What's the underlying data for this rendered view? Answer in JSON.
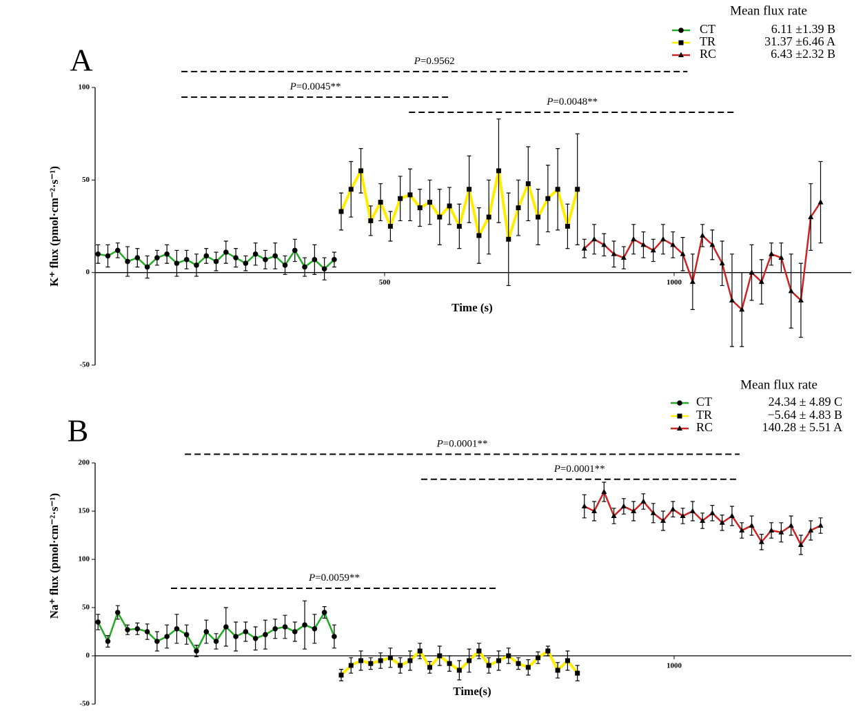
{
  "chart_data": [
    {
      "type": "line",
      "panel_label": "A",
      "legend_title": "Mean flux rate",
      "xlabel": "Time (s)",
      "ylabel": "K⁺ flux (pmol·cm⁻²·s⁻¹)",
      "xlim": [
        0,
        1306
      ],
      "ylim": [
        -50,
        100
      ],
      "xticks": [
        500,
        1000
      ],
      "yticks": [
        -50,
        0,
        50,
        100
      ],
      "series": [
        {
          "name": "CT",
          "color": "#22aa22",
          "marker": "circle",
          "mean_label": "6.11 ±1.39 B",
          "x": [
            5,
            22,
            39,
            56,
            73,
            90,
            107,
            124,
            141,
            158,
            175,
            192,
            209,
            226,
            243,
            260,
            277,
            294,
            311,
            328,
            345,
            362,
            379,
            396,
            413
          ],
          "values": [
            10,
            9,
            12,
            6,
            8,
            3,
            8,
            10,
            5,
            7,
            4,
            9,
            6,
            11,
            8,
            5,
            10,
            7,
            9,
            4,
            12,
            3,
            7,
            2,
            7
          ],
          "errors": [
            5,
            6,
            4,
            8,
            5,
            6,
            4,
            5,
            7,
            5,
            6,
            4,
            5,
            6,
            5,
            4,
            6,
            5,
            7,
            5,
            6,
            5,
            8,
            6,
            4
          ]
        },
        {
          "name": "TR",
          "color": "#ffee00",
          "marker": "square",
          "mean_label": "31.37 ±6.46 A",
          "x": [
            425,
            442,
            459,
            476,
            493,
            510,
            527,
            544,
            561,
            578,
            595,
            612,
            629,
            646,
            663,
            680,
            697,
            714,
            731,
            748,
            765,
            782,
            799,
            816,
            833
          ],
          "values": [
            33,
            45,
            55,
            28,
            38,
            25,
            40,
            42,
            35,
            38,
            30,
            36,
            25,
            45,
            20,
            30,
            55,
            18,
            35,
            48,
            30,
            40,
            45,
            25,
            45
          ],
          "errors": [
            10,
            15,
            12,
            8,
            10,
            8,
            12,
            14,
            10,
            12,
            15,
            10,
            12,
            18,
            15,
            20,
            28,
            25,
            15,
            20,
            15,
            18,
            22,
            12,
            30
          ]
        },
        {
          "name": "RC",
          "color": "#cc2222",
          "marker": "triangle",
          "mean_label": "6.43 ±2.32 B",
          "x": [
            845,
            862,
            879,
            896,
            913,
            930,
            947,
            964,
            981,
            998,
            1015,
            1032,
            1049,
            1066,
            1083,
            1100,
            1117,
            1134,
            1151,
            1168,
            1185,
            1202,
            1219,
            1236,
            1253
          ],
          "values": [
            13,
            18,
            15,
            10,
            8,
            18,
            15,
            12,
            18,
            15,
            10,
            -5,
            20,
            15,
            5,
            -15,
            -20,
            0,
            -5,
            10,
            8,
            -10,
            -15,
            30,
            38
          ],
          "errors": [
            5,
            8,
            6,
            7,
            6,
            8,
            7,
            6,
            8,
            7,
            9,
            15,
            6,
            8,
            12,
            25,
            20,
            15,
            12,
            6,
            8,
            20,
            20,
            18,
            22
          ]
        }
      ],
      "annotations": [
        {
          "text": "P=0.9562",
          "x": [
            149,
            1023
          ],
          "y": 108.6
        },
        {
          "text": "P=0.0045**",
          "x": [
            149,
            612
          ],
          "y": 94.8
        },
        {
          "text": "P=0.0048**",
          "x": [
            542,
            1106
          ],
          "y": 86.6
        }
      ]
    },
    {
      "type": "line",
      "panel_label": "B",
      "legend_title": "Mean flux rate",
      "xlabel": "Time(s)",
      "ylabel": "Na⁺ flux (pmol·cm⁻²·s⁻¹)",
      "xlim": [
        0,
        1306
      ],
      "ylim": [
        -50,
        200
      ],
      "xticks": [
        1000
      ],
      "yticks": [
        -50,
        0,
        50,
        100,
        150,
        200
      ],
      "series": [
        {
          "name": "CT",
          "color": "#22aa22",
          "marker": "circle",
          "mean_label": "24.34 ± 4.89 C",
          "x": [
            5,
            22,
            39,
            56,
            73,
            90,
            107,
            124,
            141,
            158,
            175,
            192,
            209,
            226,
            243,
            260,
            277,
            294,
            311,
            328,
            345,
            362,
            379,
            396,
            413
          ],
          "values": [
            35,
            15,
            45,
            27,
            28,
            25,
            15,
            20,
            28,
            22,
            5,
            25,
            15,
            30,
            20,
            25,
            18,
            22,
            28,
            30,
            25,
            32,
            28,
            45,
            20
          ],
          "errors": [
            8,
            6,
            7,
            5,
            6,
            8,
            10,
            12,
            15,
            10,
            6,
            12,
            8,
            20,
            15,
            10,
            12,
            15,
            10,
            12,
            10,
            25,
            15,
            6,
            12
          ]
        },
        {
          "name": "TR",
          "color": "#ffee00",
          "marker": "square",
          "mean_label": "−5.64 ± 4.83 B",
          "x": [
            425,
            442,
            459,
            476,
            493,
            510,
            527,
            544,
            561,
            578,
            595,
            612,
            629,
            646,
            663,
            680,
            697,
            714,
            731,
            748,
            765,
            782,
            799,
            816,
            833
          ],
          "values": [
            -20,
            -10,
            -5,
            -8,
            -5,
            -2,
            -10,
            -5,
            5,
            -12,
            0,
            -8,
            -15,
            -5,
            5,
            -10,
            -5,
            0,
            -8,
            -12,
            -2,
            5,
            -15,
            -5,
            -18
          ],
          "errors": [
            6,
            8,
            10,
            6,
            8,
            10,
            8,
            10,
            8,
            6,
            10,
            8,
            10,
            12,
            8,
            8,
            10,
            8,
            6,
            8,
            6,
            5,
            8,
            10,
            8
          ]
        },
        {
          "name": "RC",
          "color": "#cc2222",
          "marker": "triangle",
          "mean_label": "140.28 ± 5.51 A",
          "x": [
            845,
            862,
            879,
            896,
            913,
            930,
            947,
            964,
            981,
            998,
            1015,
            1032,
            1049,
            1066,
            1083,
            1100,
            1117,
            1134,
            1151,
            1168,
            1185,
            1202,
            1219,
            1236,
            1253
          ],
          "values": [
            155,
            150,
            170,
            145,
            155,
            150,
            160,
            148,
            140,
            152,
            145,
            150,
            140,
            148,
            138,
            145,
            130,
            135,
            118,
            130,
            128,
            135,
            115,
            130,
            135
          ],
          "errors": [
            12,
            10,
            10,
            8,
            8,
            10,
            8,
            10,
            10,
            8,
            8,
            10,
            8,
            8,
            8,
            10,
            8,
            10,
            8,
            8,
            10,
            10,
            10,
            10,
            8
          ]
        }
      ],
      "annotations": [
        {
          "text": "P=0.0001**",
          "x": [
            155,
            1113
          ],
          "y": 209
        },
        {
          "text": "P=0.0001**",
          "x": [
            563,
            1110
          ],
          "y": 183
        },
        {
          "text": "P=0.0059**",
          "x": [
            131,
            695
          ],
          "y": 70
        }
      ]
    }
  ]
}
